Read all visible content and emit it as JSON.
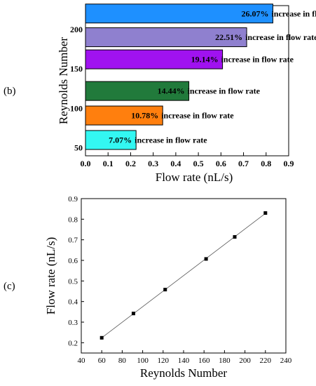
{
  "panels": {
    "b": "(b)",
    "c": "(c)"
  },
  "chart_data": [
    {
      "type": "bar",
      "orientation": "horizontal",
      "ylabel": "Reynolds Number",
      "xlabel": "Flow rate (nL/s)",
      "xlim": [
        0.0,
        0.9
      ],
      "xticks": [
        "0.0",
        "0.1",
        "0.2",
        "0.3",
        "0.4",
        "0.5",
        "0.6",
        "0.7",
        "0.8",
        "0.9"
      ],
      "ylim": [
        40,
        230
      ],
      "yticks": [
        "50",
        "100",
        "150",
        "200"
      ],
      "bars": [
        {
          "reynolds": 220,
          "flow": 0.83,
          "pct": "26.07%",
          "text": "increase in flow rate",
          "color": "#1e90ff"
        },
        {
          "reynolds": 190,
          "flow": 0.714,
          "pct": "22.51%",
          "text": "increase in flow rate",
          "color": "#8f80cf"
        },
        {
          "reynolds": 162,
          "flow": 0.607,
          "pct": "19.14%",
          "text": "increase in flow rate",
          "color": "#a012f0"
        },
        {
          "reynolds": 122,
          "flow": 0.458,
          "pct": "14.44%",
          "text": "increase in flow rate",
          "color": "#217a3b"
        },
        {
          "reynolds": 91,
          "flow": 0.342,
          "pct": "10.78%",
          "text": "increase in flow rate",
          "color": "#ff7f0e"
        },
        {
          "reynolds": 60,
          "flow": 0.224,
          "pct": "7.07%",
          "text": "increase in flow rate",
          "color": "#33f7f2"
        }
      ]
    },
    {
      "type": "scatter",
      "xlabel": "Reynolds Number",
      "ylabel": "Flow rate (nL/s)",
      "xlim": [
        40,
        240
      ],
      "xticks": [
        "40",
        "60",
        "80",
        "100",
        "120",
        "140",
        "160",
        "180",
        "200",
        "220",
        "240"
      ],
      "ylim": [
        0.15,
        0.9
      ],
      "yticks": [
        "0.2",
        "0.3",
        "0.4",
        "0.5",
        "0.6",
        "0.7",
        "0.8",
        "0.9"
      ],
      "x": [
        60,
        91,
        122,
        162,
        190,
        220
      ],
      "y": [
        0.224,
        0.342,
        0.458,
        0.607,
        0.714,
        0.83
      ],
      "fit_line": true
    }
  ]
}
